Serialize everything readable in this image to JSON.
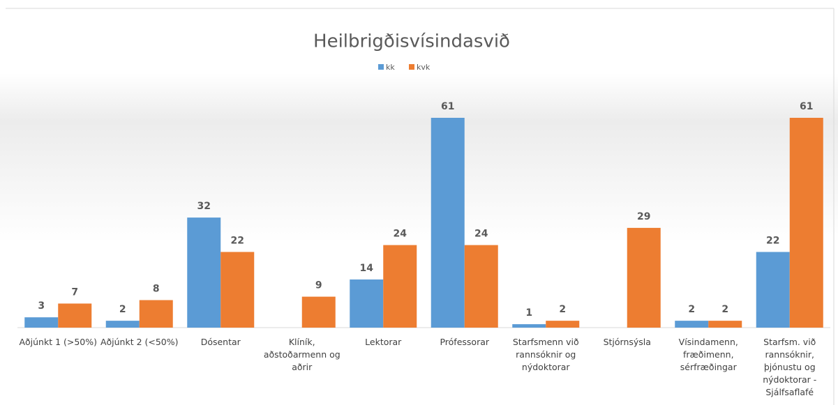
{
  "chart_data": {
    "type": "bar",
    "title": "Heilbrigðisvísindasvið",
    "categories": [
      "Aðjúnkt 1 (>50%)",
      "Aðjúnkt 2 (<50%)",
      "Dósentar",
      "Klíník, aðstoðarmenn og aðrir",
      "Lektorar",
      "Prófessorar",
      "Starfsmenn við rannsóknir og nýdoktorar",
      "Stjórnsýsla",
      "Vísindamenn, fræðimenn, sérfræðingar",
      "Starfsm. við rannsóknir, þjónustu og nýdoktorar - Sjálfsaflafé"
    ],
    "series": [
      {
        "name": "kk",
        "color": "#5b9bd5",
        "values": [
          3,
          2,
          32,
          null,
          14,
          61,
          1,
          null,
          2,
          22
        ]
      },
      {
        "name": "kvk",
        "color": "#ed7d31",
        "values": [
          7,
          8,
          22,
          9,
          24,
          24,
          2,
          29,
          2,
          61
        ]
      }
    ],
    "legend": "top"
  }
}
